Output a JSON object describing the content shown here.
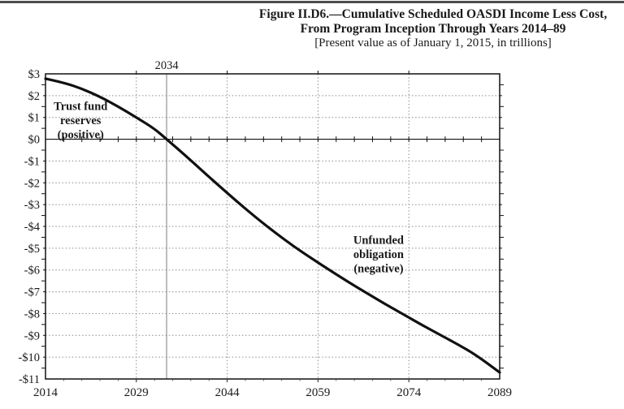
{
  "page": {
    "title_line1": "Figure II.D6.—Cumulative Scheduled OASDI Income Less Cost,",
    "title_line2": "From Program Inception Through Years 2014–89",
    "title_line3": "[Present value as of January 1, 2015, in trillions]"
  },
  "chart_data": {
    "type": "line",
    "title": "Cumulative Scheduled OASDI Income Less Cost, From Program Inception Through Years 2014–89",
    "subtitle": "[Present value as of January 1, 2015, in trillions]",
    "xlabel": "",
    "ylabel": "",
    "xlim": [
      2014,
      2089
    ],
    "ylim": [
      -11,
      3
    ],
    "grid": {
      "horizontal_major": true,
      "vertical_major": true,
      "style": "dotted",
      "color": "#8a8a8a"
    },
    "x_major_ticks": [
      2014,
      2029,
      2044,
      2059,
      2074,
      2089
    ],
    "x_tick_labels": [
      "2014",
      "2029",
      "2044",
      "2059",
      "2074",
      "2089"
    ],
    "x_minor_tick_step_years": 3,
    "y_major_ticks": [
      3,
      2,
      1,
      0,
      -1,
      -2,
      -3,
      -4,
      -5,
      -6,
      -7,
      -8,
      -9,
      -10,
      -11
    ],
    "y_tick_labels": [
      "$3",
      "$2",
      "$1",
      "$0",
      "-$1",
      "-$2",
      "-$3",
      "-$4",
      "-$5",
      "-$6",
      "-$7",
      "-$8",
      "-$9",
      "-$10",
      "-$11"
    ],
    "y_minor_tick_step": 0.5,
    "zero_line": {
      "value": 0,
      "style": "solid",
      "tick_interval_years": 3
    },
    "depletion_marker": {
      "x": 2034,
      "label": "2034"
    },
    "annotations": [
      {
        "id": "trust-fund-reserves",
        "lines": [
          "Trust fund",
          "reserves",
          "(positive)"
        ],
        "x": 2019.8,
        "y": 1.52
      },
      {
        "id": "unfunded-obligation",
        "lines": [
          "Unfunded",
          "obligation",
          "(negative)"
        ],
        "x": 2069.0,
        "y": -4.62
      }
    ],
    "series": [
      {
        "name": "Cumulative scheduled OASDI income less cost (present value, trillions)",
        "color": "#111111",
        "points": [
          [
            2014,
            2.78
          ],
          [
            2017,
            2.6
          ],
          [
            2020,
            2.32
          ],
          [
            2023,
            1.95
          ],
          [
            2026,
            1.5
          ],
          [
            2029,
            1.0
          ],
          [
            2032,
            0.48
          ],
          [
            2034,
            0.0
          ],
          [
            2037,
            -0.72
          ],
          [
            2040,
            -1.48
          ],
          [
            2043,
            -2.22
          ],
          [
            2046,
            -2.95
          ],
          [
            2049,
            -3.65
          ],
          [
            2052,
            -4.3
          ],
          [
            2055,
            -4.92
          ],
          [
            2058,
            -5.48
          ],
          [
            2061,
            -6.02
          ],
          [
            2064,
            -6.55
          ],
          [
            2067,
            -7.05
          ],
          [
            2070,
            -7.55
          ],
          [
            2073,
            -8.02
          ],
          [
            2076,
            -8.5
          ],
          [
            2079,
            -8.95
          ],
          [
            2082,
            -9.4
          ],
          [
            2085,
            -9.88
          ],
          [
            2089,
            -10.7
          ]
        ]
      }
    ]
  }
}
